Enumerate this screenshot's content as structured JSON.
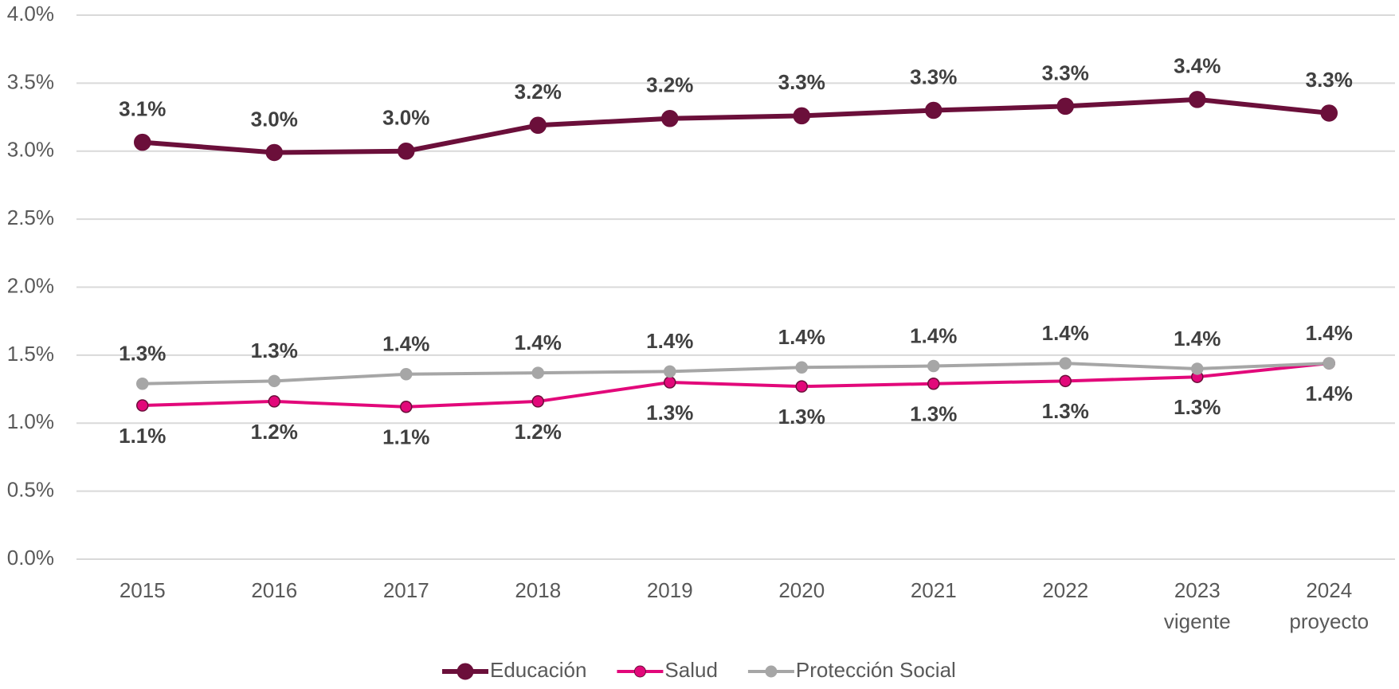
{
  "chart_data": {
    "type": "line",
    "categories": [
      "2015",
      "2016",
      "2017",
      "2018",
      "2019",
      "2020",
      "2021",
      "2022",
      "2023\nvigente",
      "2024\nproyecto"
    ],
    "series": [
      {
        "name": "Educación",
        "color": "#6b0f3a",
        "values": [
          3.065,
          2.99,
          3.0,
          3.19,
          3.24,
          3.26,
          3.3,
          3.33,
          3.38,
          3.28
        ],
        "value_labels": [
          "3.1%",
          "3.0%",
          "3.0%",
          "3.2%",
          "3.2%",
          "3.3%",
          "3.3%",
          "3.3%",
          "3.4%",
          "3.3%"
        ]
      },
      {
        "name": "Salud",
        "color": "#e2087a",
        "values": [
          1.13,
          1.16,
          1.12,
          1.16,
          1.3,
          1.27,
          1.29,
          1.31,
          1.34,
          1.44
        ],
        "value_labels": [
          "1.1%",
          "1.2%",
          "1.1%",
          "1.2%",
          "1.3%",
          "1.3%",
          "1.3%",
          "1.3%",
          "1.3%",
          "1.4%"
        ]
      },
      {
        "name": "Protección Social",
        "color": "#a6a6a6",
        "values": [
          1.29,
          1.31,
          1.36,
          1.37,
          1.38,
          1.41,
          1.42,
          1.44,
          1.4,
          1.44
        ],
        "value_labels": [
          "1.3%",
          "1.3%",
          "1.4%",
          "1.4%",
          "1.4%",
          "1.4%",
          "1.4%",
          "1.4%",
          "1.4%",
          "1.4%"
        ]
      }
    ],
    "ylim": [
      0,
      4
    ],
    "yticks": [
      {
        "value": 0,
        "label": "0.0%"
      },
      {
        "value": 0.5,
        "label": "0.5%"
      },
      {
        "value": 1,
        "label": "1.0%"
      },
      {
        "value": 1.5,
        "label": "1.5%"
      },
      {
        "value": 2,
        "label": "2.0%"
      },
      {
        "value": 2.5,
        "label": "2.5%"
      },
      {
        "value": 3,
        "label": "3.0%"
      },
      {
        "value": 3.5,
        "label": "3.5%"
      },
      {
        "value": 4,
        "label": "4.0%"
      }
    ],
    "grid": true,
    "legend": "bottom"
  }
}
